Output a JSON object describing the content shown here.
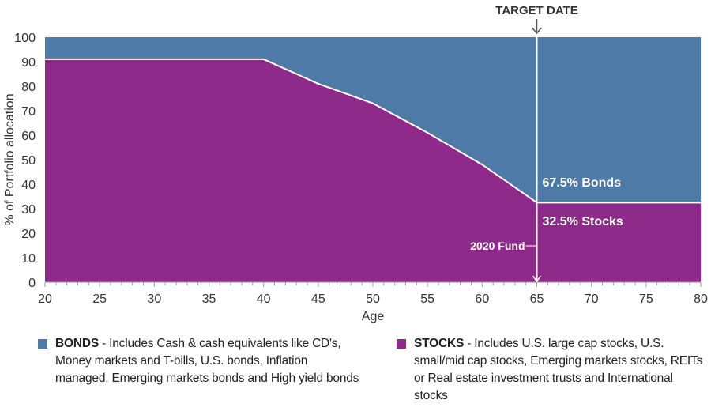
{
  "chart_data": {
    "type": "area",
    "xlabel": "Age",
    "ylabel": "% of Portfolio allocation",
    "xlim": [
      20,
      80
    ],
    "ylim": [
      0,
      100
    ],
    "xticks": [
      20,
      25,
      30,
      35,
      40,
      45,
      50,
      55,
      60,
      65,
      70,
      75,
      80
    ],
    "yticks": [
      0,
      10,
      20,
      30,
      40,
      50,
      60,
      70,
      80,
      90,
      100
    ],
    "grid": false,
    "stacked": true,
    "x": [
      20,
      40,
      45,
      50,
      55,
      60,
      65,
      80
    ],
    "series": [
      {
        "name": "STOCKS",
        "color": "#8e2a8a",
        "values": [
          91,
          91,
          81,
          73,
          61,
          48,
          32.5,
          32.5
        ]
      },
      {
        "name": "BONDS",
        "color": "#4e7aa7",
        "values": [
          9,
          9,
          19,
          27,
          39,
          52,
          67.5,
          67.5
        ]
      }
    ],
    "annotations": {
      "target_date_label": "TARGET DATE",
      "target_age": 65,
      "bonds_label": "67.5% Bonds",
      "stocks_label": "32.5% Stocks",
      "fund_label": "2020 Fund"
    },
    "legend": {
      "placement": "bottom",
      "items": [
        {
          "key": "BONDS",
          "text": " - Includes Cash & cash equivalents like CD's, Money markets and T-bills, U.S. bonds, Inflation managed, Emerging markets bonds and High yield bonds",
          "color": "#4e7aa7"
        },
        {
          "key": "STOCKS",
          "text": " - Includes U.S. large cap stocks, U.S. small/mid cap stocks, Emerging markets stocks, REITs or Real estate investment trusts and International stocks",
          "color": "#8e2a8a"
        }
      ]
    }
  }
}
